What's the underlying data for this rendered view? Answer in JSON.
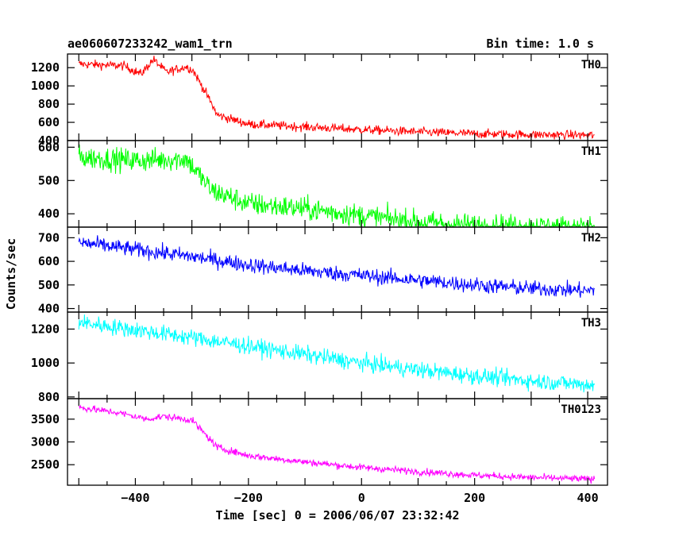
{
  "header": {
    "left_title": "ae060607233242_wam1_trn",
    "right_title": "Bin time: 1.0 s"
  },
  "chart_data": {
    "type": "line",
    "title": "ae060607233242_wam1_trn",
    "bin_time": "Bin time: 1.0 s",
    "xlabel": "Time [sec] 0 = 2006/06/07 23:32:42",
    "ylabel": "Counts/sec",
    "xlim": [
      -520,
      435
    ],
    "xticks": [
      -400,
      -200,
      0,
      200,
      400
    ],
    "xtick_labels": [
      "−400",
      "−200",
      "0",
      "200",
      "400"
    ],
    "x_start": -500,
    "x_end": 412,
    "panels": [
      {
        "name": "TH0",
        "color": "#ff0000",
        "ylim": [
          400,
          1350
        ],
        "yticks": [
          400,
          600,
          800,
          1000,
          1200
        ],
        "noise": 45,
        "profile": [
          [
            -500,
            1240
          ],
          [
            -420,
            1220
          ],
          [
            -390,
            1130
          ],
          [
            -368,
            1290
          ],
          [
            -345,
            1150
          ],
          [
            -310,
            1210
          ],
          [
            -298,
            1170
          ],
          [
            -275,
            920
          ],
          [
            -255,
            680
          ],
          [
            -200,
            580
          ],
          [
            -100,
            550
          ],
          [
            0,
            520
          ],
          [
            100,
            495
          ],
          [
            200,
            475
          ],
          [
            300,
            465
          ],
          [
            412,
            460
          ]
        ]
      },
      {
        "name": "TH1",
        "color": "#00ff00",
        "ylim": [
          360,
          620
        ],
        "yticks": [
          400,
          500,
          600
        ],
        "noise": 32,
        "profile": [
          [
            -500,
            570
          ],
          [
            -400,
            560
          ],
          [
            -310,
            565
          ],
          [
            -298,
            540
          ],
          [
            -265,
            470
          ],
          [
            -200,
            430
          ],
          [
            -100,
            415
          ],
          [
            0,
            395
          ],
          [
            100,
            375
          ],
          [
            200,
            365
          ],
          [
            300,
            362
          ],
          [
            412,
            358
          ]
        ]
      },
      {
        "name": "TH2",
        "color": "#0000ff",
        "ylim": [
          385,
          745
        ],
        "yticks": [
          400,
          500,
          600,
          700
        ],
        "noise": 30,
        "profile": [
          [
            -500,
            680
          ],
          [
            -400,
            650
          ],
          [
            -300,
            620
          ],
          [
            -200,
            585
          ],
          [
            -100,
            560
          ],
          [
            0,
            540
          ],
          [
            100,
            520
          ],
          [
            200,
            500
          ],
          [
            300,
            485
          ],
          [
            412,
            475
          ]
        ]
      },
      {
        "name": "TH3",
        "color": "#00ffff",
        "ylim": [
          790,
          1300
        ],
        "yticks": [
          800,
          1000,
          1200
        ],
        "noise": 45,
        "profile": [
          [
            -500,
            1240
          ],
          [
            -400,
            1195
          ],
          [
            -300,
            1150
          ],
          [
            -200,
            1100
          ],
          [
            -100,
            1050
          ],
          [
            0,
            1000
          ],
          [
            100,
            960
          ],
          [
            200,
            925
          ],
          [
            300,
            895
          ],
          [
            412,
            870
          ]
        ]
      },
      {
        "name": "TH0123",
        "color": "#ff00ff",
        "ylim": [
          2050,
          3950
        ],
        "yticks": [
          2500,
          3000,
          3500
        ],
        "noise": 70,
        "profile": [
          [
            -500,
            3760
          ],
          [
            -430,
            3640
          ],
          [
            -380,
            3500
          ],
          [
            -350,
            3560
          ],
          [
            -300,
            3480
          ],
          [
            -285,
            3280
          ],
          [
            -255,
            2880
          ],
          [
            -200,
            2700
          ],
          [
            -100,
            2560
          ],
          [
            0,
            2440
          ],
          [
            100,
            2350
          ],
          [
            200,
            2270
          ],
          [
            300,
            2220
          ],
          [
            412,
            2180
          ]
        ]
      }
    ],
    "grid": false,
    "legend": "none"
  }
}
